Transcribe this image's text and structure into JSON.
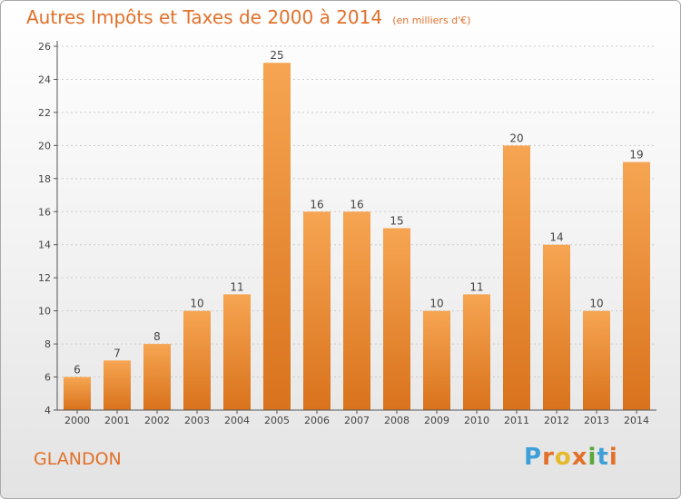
{
  "title": "Autres Impôts et Taxes de 2000 à 2014",
  "subtitle": "(en milliers d'€)",
  "commune": "GLANDON",
  "logo": {
    "letters": [
      "P",
      "r",
      "o",
      "x",
      "i",
      "t",
      "i"
    ],
    "colors": [
      "#3fa0d8",
      "#e2702a",
      "#e6b82a",
      "#e2702a",
      "#5aa83a",
      "#3fa0d8",
      "#e2702a"
    ]
  },
  "colors": {
    "bar_top": "#f6a552",
    "bar_bottom": "#d9721c",
    "text_accent": "#e2702a",
    "grid": "#cccccc"
  },
  "chart_data": {
    "type": "bar",
    "title": "Autres Impôts et Taxes de 2000 à 2014",
    "subtitle": "(en milliers d'€)",
    "categories": [
      "2000",
      "2001",
      "2002",
      "2003",
      "2004",
      "2005",
      "2006",
      "2007",
      "2008",
      "2009",
      "2010",
      "2011",
      "2012",
      "2013",
      "2014"
    ],
    "values": [
      6,
      7,
      8,
      10,
      11,
      25,
      16,
      16,
      15,
      10,
      11,
      20,
      14,
      10,
      19
    ],
    "yticks": [
      4,
      6,
      8,
      10,
      12,
      14,
      16,
      18,
      20,
      22,
      24,
      26
    ],
    "ylim": [
      4,
      26
    ],
    "xlabel": "",
    "ylabel": "",
    "grid": true
  }
}
